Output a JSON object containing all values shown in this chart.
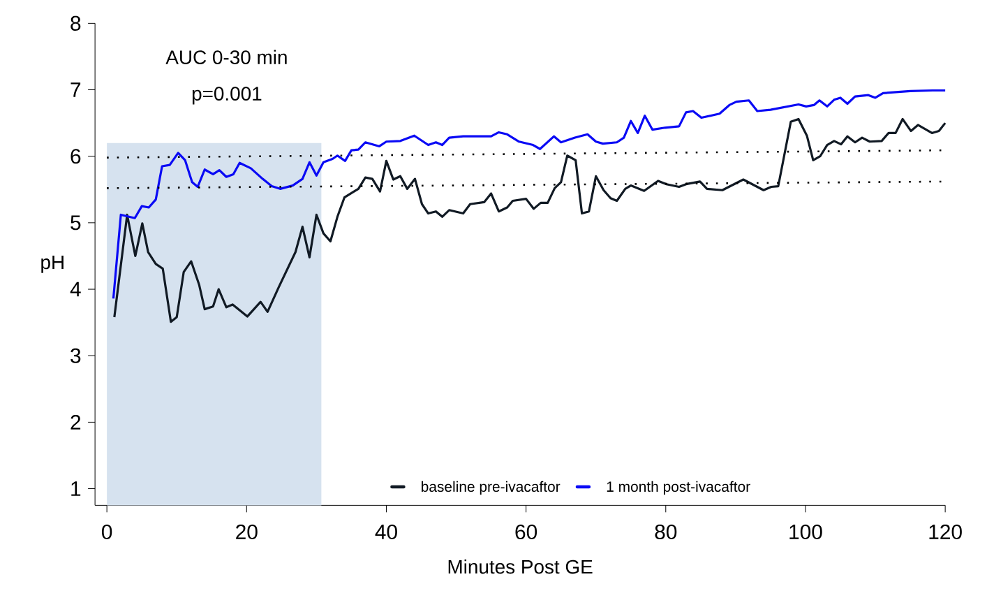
{
  "chart_data": {
    "type": "line",
    "xlabel": "Minutes Post GE",
    "ylabel": "pH",
    "annotations": [
      "AUC 0-30 min",
      "p=0.001"
    ],
    "xlim": [
      -1.7,
      120
    ],
    "ylim": [
      0.75,
      8
    ],
    "xticks": [
      0,
      20,
      40,
      60,
      80,
      100,
      120
    ],
    "yticks": [
      1,
      2,
      3,
      4,
      5,
      6,
      7,
      8
    ],
    "legend": "bottom",
    "grid": false,
    "line_style": "solid",
    "marker": "none",
    "bands": [
      {
        "axis": "x",
        "from": 0,
        "to": 30.7,
        "color": "#d6e2ef"
      }
    ],
    "series": [
      {
        "name": "baseline pre-ivacaftor",
        "color": "#111a24",
        "x": [
          1.07,
          2.9,
          4.07,
          5.07,
          5.9,
          7.0,
          8.0,
          9.16,
          10.0,
          11.0,
          12.06,
          13.2,
          14.0,
          15.2,
          16.0,
          17.1,
          18.0,
          20.1,
          22.0,
          23.0,
          24.6,
          27.0,
          28.0,
          29.0,
          30.0,
          31.0,
          32.0,
          33,
          34,
          36,
          37,
          38,
          39.1,
          40.0,
          41,
          42,
          43,
          44.1,
          45.1,
          46.0,
          47.1,
          48.0,
          49,
          51,
          52,
          54,
          55,
          56.1,
          57.3,
          58.1,
          60,
          61.1,
          62.1,
          63.1,
          64.1,
          65,
          65.9,
          67.1,
          68,
          69,
          70,
          71.1,
          72.1,
          73,
          74.2,
          75,
          76.9,
          78.9,
          80.1,
          81.9,
          82.9,
          84.9,
          85.9,
          88.1,
          91.1,
          94.0,
          95.1,
          96.1,
          97.9,
          99,
          100.2,
          101.1,
          102.1,
          103.1,
          104.1,
          105.1,
          106,
          107.1,
          108.1,
          109.2,
          110.9,
          111.9,
          112.9,
          113.9,
          115.1,
          116.1,
          118.1,
          119.1,
          120
        ],
        "values": [
          3.58,
          5.12,
          4.5,
          4.99,
          4.56,
          4.38,
          4.31,
          3.51,
          3.58,
          4.26,
          4.42,
          4.07,
          3.7,
          3.74,
          4.0,
          3.73,
          3.77,
          3.59,
          3.81,
          3.66,
          4.03,
          4.56,
          4.94,
          4.48,
          5.12,
          4.84,
          4.72,
          5.09,
          5.38,
          5.51,
          5.68,
          5.66,
          5.47,
          5.93,
          5.65,
          5.7,
          5.51,
          5.66,
          5.28,
          5.14,
          5.17,
          5.09,
          5.19,
          5.14,
          5.28,
          5.31,
          5.44,
          5.17,
          5.23,
          5.33,
          5.36,
          5.21,
          5.3,
          5.3,
          5.52,
          5.61,
          6.01,
          5.94,
          5.14,
          5.17,
          5.7,
          5.49,
          5.37,
          5.33,
          5.51,
          5.56,
          5.48,
          5.63,
          5.58,
          5.54,
          5.58,
          5.62,
          5.51,
          5.49,
          5.65,
          5.49,
          5.54,
          5.55,
          6.52,
          6.56,
          6.31,
          5.94,
          6.0,
          6.17,
          6.23,
          6.18,
          6.3,
          6.21,
          6.28,
          6.22,
          6.23,
          6.35,
          6.35,
          6.56,
          6.38,
          6.47,
          6.35,
          6.38,
          6.5
        ]
      },
      {
        "name": "1 month post-ivacaftor",
        "color": "#0a0af5",
        "x": [
          0.93,
          2.0,
          4.0,
          5.0,
          6,
          7,
          7.9,
          9,
          10.2,
          11.2,
          12.2,
          13,
          14,
          15.2,
          16.1,
          17.1,
          18.1,
          19,
          20.6,
          22.3,
          23.6,
          24.8,
          26.6,
          28,
          29,
          30,
          31,
          32.3,
          33,
          34.1,
          35,
          36,
          37,
          39,
          40,
          42,
          44,
          46,
          47.1,
          48,
          49,
          51,
          55,
          56.1,
          57.3,
          59,
          61,
          62,
          64,
          65,
          67,
          68.8,
          70,
          71,
          73,
          74,
          75,
          76,
          77,
          78.1,
          79.9,
          81.9,
          82.9,
          83.9,
          85.1,
          87.7,
          89.1,
          90.1,
          91.9,
          93.1,
          95,
          99,
          100.1,
          101.2,
          102,
          103.1,
          104.1,
          105,
          106,
          107.1,
          109,
          110,
          111.1,
          115,
          118.2,
          120
        ],
        "values": [
          3.86,
          5.12,
          5.07,
          5.25,
          5.23,
          5.35,
          5.85,
          5.87,
          6.05,
          5.94,
          5.61,
          5.54,
          5.8,
          5.73,
          5.79,
          5.69,
          5.73,
          5.9,
          5.82,
          5.66,
          5.55,
          5.51,
          5.56,
          5.66,
          5.91,
          5.71,
          5.91,
          5.96,
          6.01,
          5.93,
          6.09,
          6.1,
          6.21,
          6.15,
          6.22,
          6.23,
          6.31,
          6.17,
          6.21,
          6.17,
          6.28,
          6.3,
          6.3,
          6.36,
          6.33,
          6.22,
          6.17,
          6.11,
          6.3,
          6.21,
          6.28,
          6.33,
          6.22,
          6.19,
          6.21,
          6.28,
          6.53,
          6.35,
          6.61,
          6.4,
          6.43,
          6.45,
          6.66,
          6.68,
          6.58,
          6.64,
          6.77,
          6.82,
          6.84,
          6.68,
          6.7,
          6.78,
          6.75,
          6.77,
          6.84,
          6.75,
          6.85,
          6.88,
          6.79,
          6.9,
          6.92,
          6.88,
          6.95,
          6.98,
          6.99,
          6.99
        ]
      },
      {
        "color": "#000000",
        "line_style": "dotted",
        "x": [
          0,
          120
        ],
        "values": [
          5.98,
          6.09
        ]
      },
      {
        "color": "#000000",
        "line_style": "dotted",
        "x": [
          0,
          120
        ],
        "values": [
          5.52,
          5.62
        ]
      }
    ]
  }
}
